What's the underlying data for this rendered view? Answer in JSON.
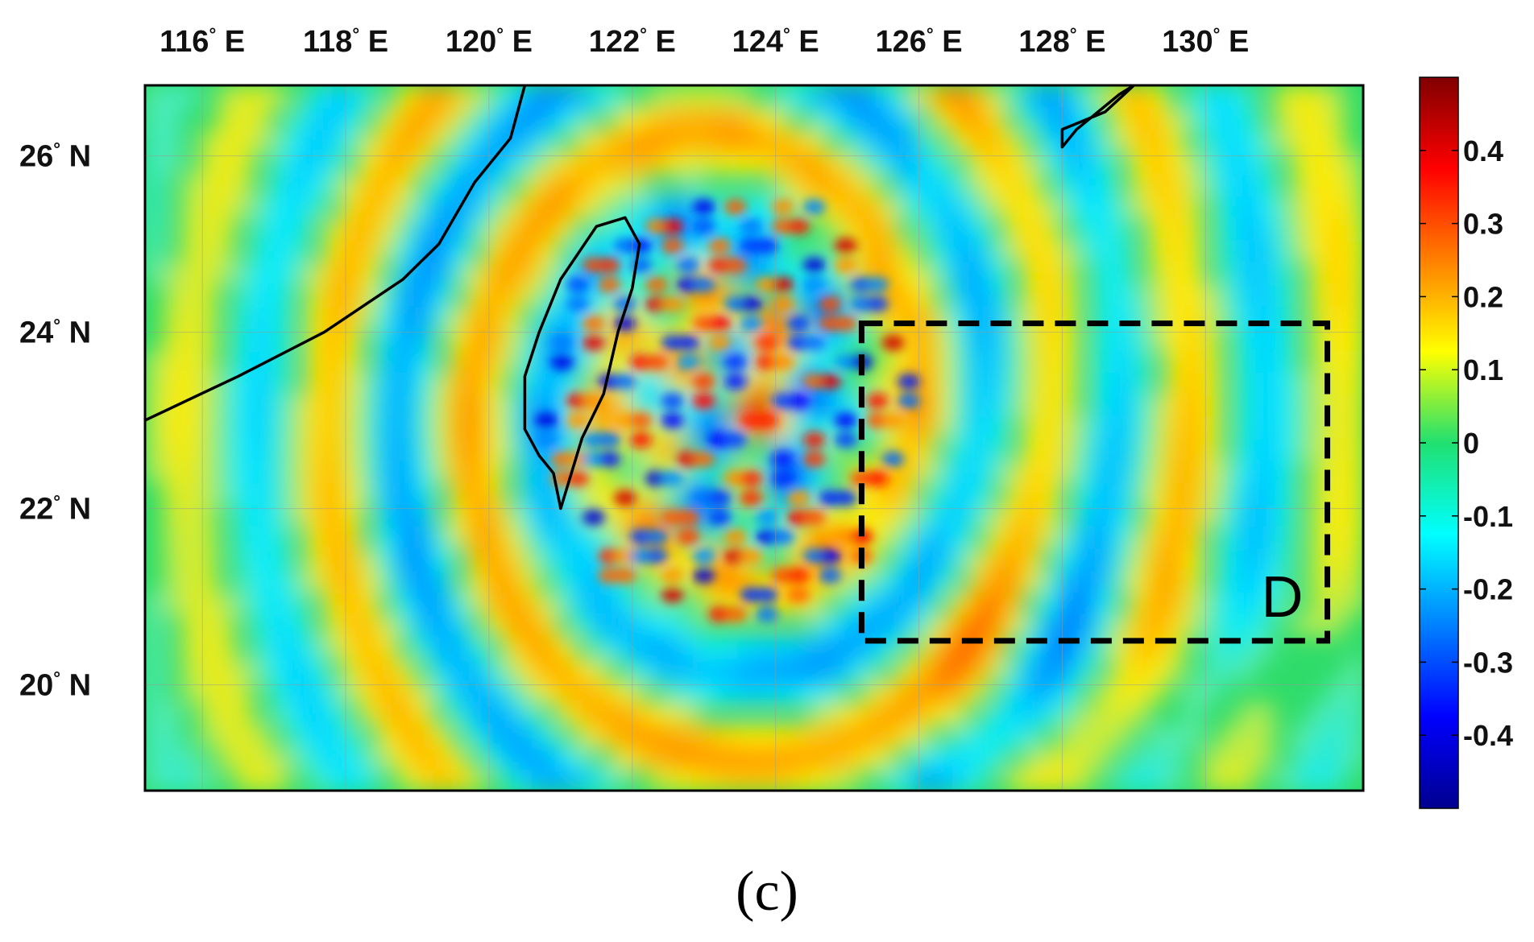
{
  "map": {
    "lon_range": [
      115.2,
      132.2
    ],
    "lat_range": [
      18.8,
      26.8
    ],
    "lon_ticks": [
      {
        "value": 116,
        "num": "116",
        "hemi": "E"
      },
      {
        "value": 118,
        "num": "118",
        "hemi": "E"
      },
      {
        "value": 120,
        "num": "120",
        "hemi": "E"
      },
      {
        "value": 122,
        "num": "122",
        "hemi": "E"
      },
      {
        "value": 124,
        "num": "124",
        "hemi": "E"
      },
      {
        "value": 126,
        "num": "126",
        "hemi": "E"
      },
      {
        "value": 128,
        "num": "128",
        "hemi": "E"
      },
      {
        "value": 130,
        "num": "130",
        "hemi": "E"
      }
    ],
    "lat_ticks": [
      {
        "value": 26,
        "num": "26",
        "hemi": "N"
      },
      {
        "value": 24,
        "num": "24",
        "hemi": "N"
      },
      {
        "value": 22,
        "num": "22",
        "hemi": "N"
      },
      {
        "value": 20,
        "num": "20",
        "hemi": "N"
      }
    ],
    "degree_symbol": "°",
    "region_box": {
      "label": "D",
      "lon_min": 125.2,
      "lon_max": 131.7,
      "lat_min": 20.5,
      "lat_max": 24.1
    },
    "coastlines": {
      "mainland_china": [
        [
          115.2,
          23.0
        ],
        [
          116.5,
          23.5
        ],
        [
          117.7,
          24.0
        ],
        [
          118.8,
          24.6
        ],
        [
          119.3,
          25.0
        ],
        [
          119.8,
          25.7
        ],
        [
          120.3,
          26.2
        ],
        [
          120.5,
          26.8
        ]
      ],
      "taiwan": [
        [
          121.0,
          22.0
        ],
        [
          120.9,
          22.4
        ],
        [
          120.7,
          22.6
        ],
        [
          120.5,
          22.9
        ],
        [
          120.5,
          23.5
        ],
        [
          120.7,
          24.0
        ],
        [
          121.0,
          24.6
        ],
        [
          121.5,
          25.2
        ],
        [
          121.9,
          25.3
        ],
        [
          122.1,
          25.0
        ],
        [
          122.0,
          24.5
        ],
        [
          121.8,
          24.0
        ],
        [
          121.6,
          23.3
        ],
        [
          121.3,
          22.8
        ]
      ],
      "ryukyu_island": [
        [
          129.0,
          26.8
        ],
        [
          128.6,
          26.5
        ],
        [
          128.0,
          26.3
        ],
        [
          128.0,
          26.1
        ],
        [
          128.2,
          26.3
        ],
        [
          128.8,
          26.7
        ]
      ]
    },
    "colormap": "jet",
    "field_description_hidden": false
  },
  "colorbar": {
    "min": -0.5,
    "max": 0.5,
    "ticks": [
      "0.4",
      "0.3",
      "0.2",
      "0.1",
      "0",
      "-0.1",
      "-0.2",
      "-0.3",
      "-0.4"
    ],
    "tick_values": [
      0.4,
      0.3,
      0.2,
      0.1,
      0,
      -0.1,
      -0.2,
      -0.3,
      -0.4
    ]
  },
  "panel_label": "(c)"
}
